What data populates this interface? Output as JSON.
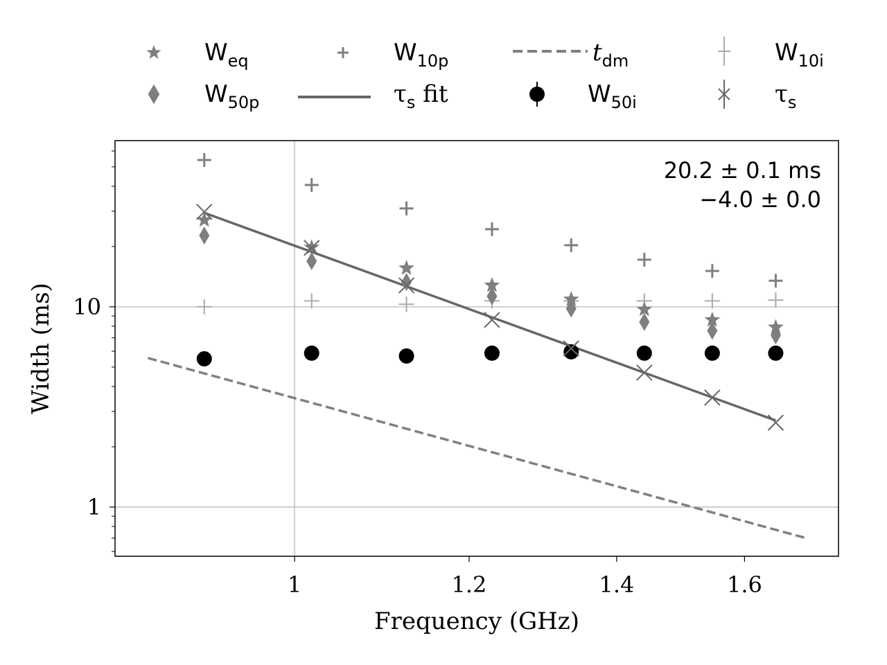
{
  "chart_data": {
    "type": "scatter",
    "xlabel": "Frequency (GHz)",
    "ylabel": "Width (ms)",
    "xscale": "log",
    "yscale": "log",
    "xlim": [
      0.829,
      1.765
    ],
    "ylim": [
      0.568,
      67.6
    ],
    "x_ticks": [
      {
        "v": 1,
        "label": "1"
      },
      {
        "v": 1.2,
        "label": "1.2"
      },
      {
        "v": 1.4,
        "label": "1.4"
      },
      {
        "v": 1.6,
        "label": "1.6"
      }
    ],
    "y_ticks": [
      {
        "v": 1,
        "label": "1"
      },
      {
        "v": 10,
        "label": "10"
      }
    ],
    "grid": "major",
    "legend_placement": "top, outside plot",
    "annotation": [
      "20.2 ± 0.1 ms",
      "−4.0 ± 0.0"
    ],
    "x": [
      0.91,
      1.018,
      1.124,
      1.229,
      1.335,
      1.441,
      1.547,
      1.653
    ],
    "series": [
      {
        "name": "W_eq",
        "label": "W",
        "sub": "eq",
        "marker": "star",
        "color": "#7f7f7f",
        "values": [
          27.1,
          19.8,
          15.6,
          12.8,
          10.9,
          9.7,
          8.6,
          7.9
        ]
      },
      {
        "name": "W_50p",
        "label": "W",
        "sub": "50p",
        "marker": "diamond",
        "color": "#7f7f7f",
        "values": [
          22.7,
          16.9,
          13.3,
          11.3,
          9.8,
          8.4,
          7.6,
          7.2
        ]
      },
      {
        "name": "W_10p",
        "label": "W",
        "sub": "10p",
        "marker": "plus",
        "color": "#7f7f7f",
        "values": [
          54.1,
          40.6,
          31.0,
          24.4,
          20.3,
          17.2,
          15.1,
          13.5
        ]
      },
      {
        "name": "τ_s fit",
        "label": "τ",
        "sub": "s",
        "suffix": " fit",
        "marker": "line",
        "color": "#666666",
        "amplitude_at_1GHz": 20.2,
        "index": -4.0,
        "x_range": [
          0.91,
          1.653
        ]
      },
      {
        "name": "t_dm",
        "label": "t",
        "sub": "dm",
        "marker": "dashed",
        "color": "#808080",
        "x_range": [
          0.858,
          1.706
        ],
        "values_at_ends": [
          5.55,
          0.7
        ]
      },
      {
        "name": "W_50i",
        "label": "W",
        "sub": "50i",
        "marker": "circle",
        "color": "#000000",
        "values": [
          5.5,
          5.87,
          5.68,
          5.87,
          5.96,
          5.87,
          5.87,
          5.87
        ]
      },
      {
        "name": "W_10i",
        "label": "W",
        "sub": "10i",
        "marker": "thinplus",
        "color": "#aaaaaa",
        "values": [
          10.0,
          10.7,
          10.3,
          10.7,
          10.7,
          10.7,
          10.7,
          10.8
        ]
      },
      {
        "name": "τ_s",
        "label": "τ",
        "sub": "s",
        "marker": "x",
        "color": "#666666",
        "values": [
          29.8,
          19.7,
          12.8,
          8.6,
          6.2,
          4.69,
          3.52,
          2.64
        ]
      }
    ]
  }
}
